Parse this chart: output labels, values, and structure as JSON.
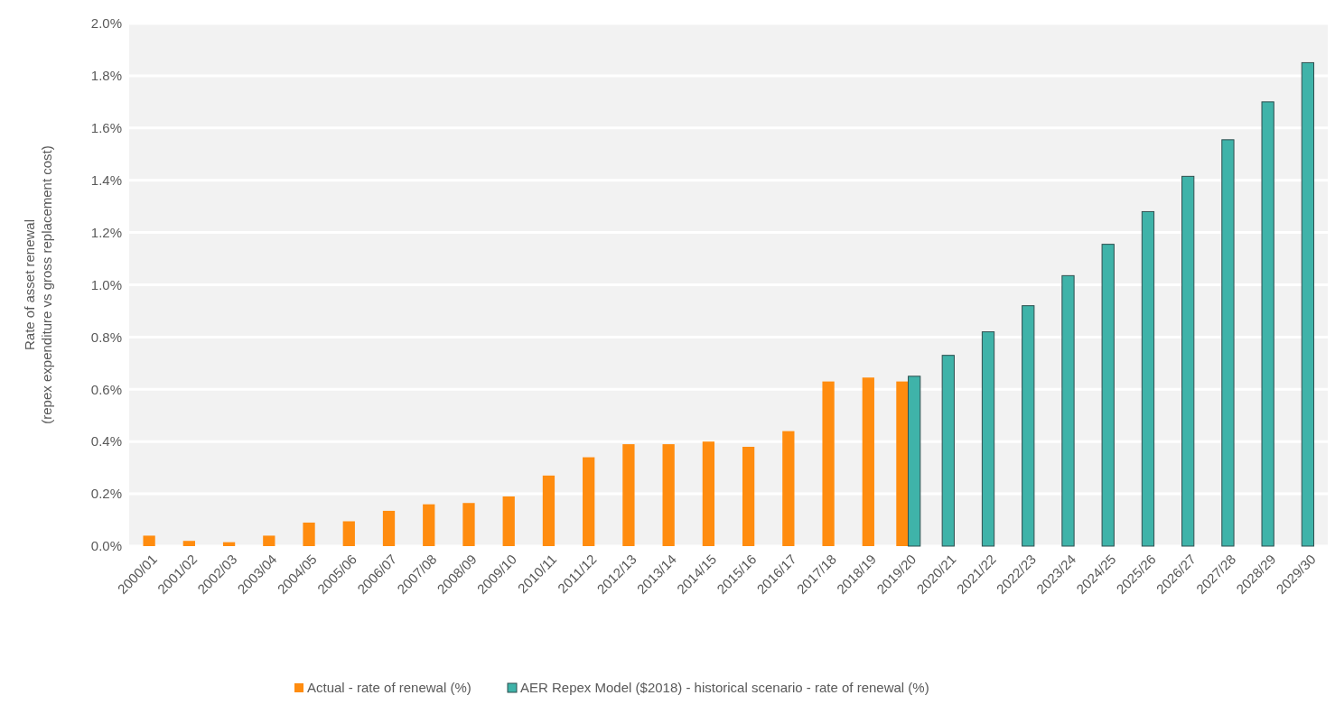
{
  "chart_data": {
    "type": "bar",
    "ylabel": "Rate of asset renewal\n(repex expenditure vs gross replacement cost)",
    "categories": [
      "2000/01",
      "2001/02",
      "2002/03",
      "2003/04",
      "2004/05",
      "2005/06",
      "2006/07",
      "2007/08",
      "2008/09",
      "2009/10",
      "2010/11",
      "2011/12",
      "2012/13",
      "2013/14",
      "2014/15",
      "2015/16",
      "2016/17",
      "2017/18",
      "2018/19",
      "2019/20",
      "2020/21",
      "2021/22",
      "2022/23",
      "2023/24",
      "2024/25",
      "2025/26",
      "2026/27",
      "2027/28",
      "2028/29",
      "2029/30"
    ],
    "series": [
      {
        "name": "Actual - rate of renewal (%)",
        "color": "#ff8c0f",
        "values": [
          0.04,
          0.02,
          0.015,
          0.04,
          0.09,
          0.095,
          0.135,
          0.16,
          0.165,
          0.19,
          0.27,
          0.34,
          0.39,
          0.39,
          0.4,
          0.38,
          0.44,
          0.63,
          0.645,
          0.63,
          null,
          null,
          null,
          null,
          null,
          null,
          null,
          null,
          null,
          null
        ]
      },
      {
        "name": "AER Repex Model ($2018) - historical scenario - rate of renewal (%)",
        "color": "#3fb3a9",
        "values": [
          null,
          null,
          null,
          null,
          null,
          null,
          null,
          null,
          null,
          null,
          null,
          null,
          null,
          null,
          null,
          null,
          null,
          null,
          null,
          0.65,
          0.73,
          0.82,
          0.92,
          1.035,
          1.155,
          1.28,
          1.415,
          1.555,
          1.7,
          1.85
        ]
      }
    ],
    "ylim": [
      0,
      2
    ],
    "yticks": [
      {
        "value": 0,
        "label": "0.0%"
      },
      {
        "value": 0.2,
        "label": "0.2%"
      },
      {
        "value": 0.4,
        "label": "0.4%"
      },
      {
        "value": 0.6,
        "label": "0.6%"
      },
      {
        "value": 0.8,
        "label": "0.8%"
      },
      {
        "value": 1,
        "label": "1.0%"
      },
      {
        "value": 1.2,
        "label": "1.2%"
      },
      {
        "value": 1.4,
        "label": "1.4%"
      },
      {
        "value": 1.6,
        "label": "1.6%"
      },
      {
        "value": 1.8,
        "label": "1.8%"
      },
      {
        "value": 2,
        "label": "2.0%"
      }
    ],
    "grid": "y",
    "legend": "bottom"
  }
}
